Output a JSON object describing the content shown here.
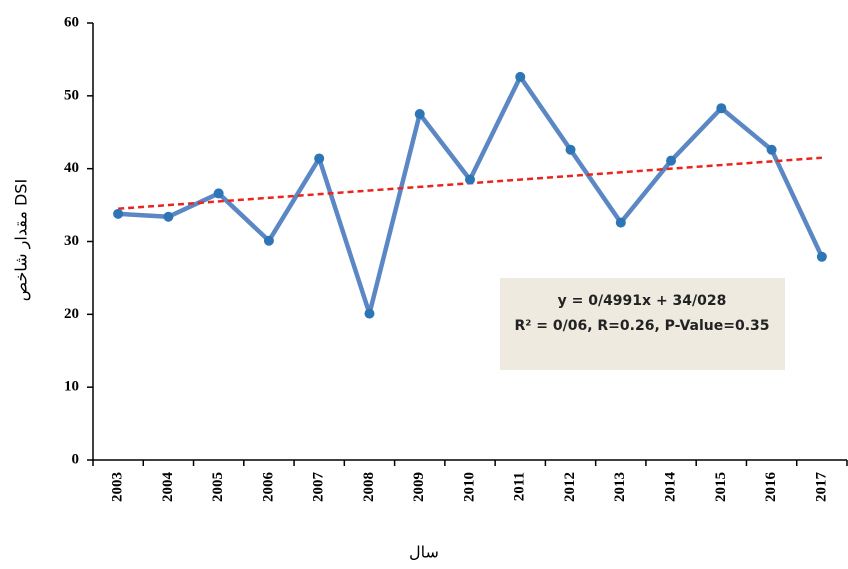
{
  "chart_data": {
    "type": "line",
    "x_label": "سال",
    "y_label": "مقدار شاخص DSI",
    "categories": [
      "2003",
      "2004",
      "2005",
      "2006",
      "2007",
      "2008",
      "2009",
      "2010",
      "2011",
      "2012",
      "2013",
      "2014",
      "2015",
      "2016",
      "2017"
    ],
    "values": [
      33.8,
      33.4,
      36.6,
      30.1,
      41.4,
      20.1,
      47.5,
      38.5,
      52.6,
      42.6,
      32.6,
      41.1,
      48.3,
      42.6,
      27.9
    ],
    "color": "#5b87c5",
    "marker_color": "#2e75b6",
    "trendline": {
      "start": 34.5,
      "end": 41.5,
      "color": "#e8261f"
    },
    "annotations": [
      "y = 0/4991x + 34/028",
      "R² = 0/06, R=0.26, P-Value=0.35"
    ],
    "ylim": [
      0,
      60
    ],
    "yticks": [
      0,
      10,
      20,
      30,
      40,
      50,
      60
    ]
  }
}
